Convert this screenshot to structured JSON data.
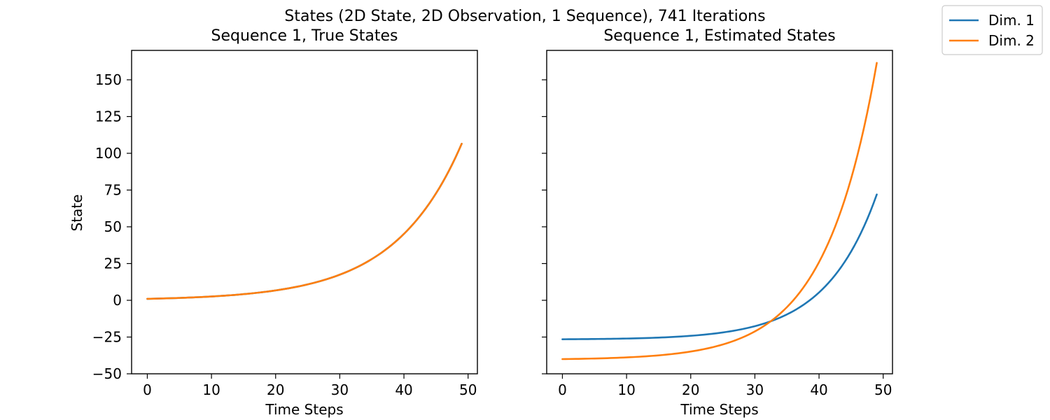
{
  "figure": {
    "suptitle": "States (2D State, 2D Observation, 1 Sequence), 741 Iterations",
    "legend": {
      "placement": "top-right (figure)",
      "entries": [
        {
          "label": "Dim. 1",
          "color": "#1f77b4"
        },
        {
          "label": "Dim. 2",
          "color": "#ff7f0e"
        }
      ]
    }
  },
  "chart_data": [
    {
      "type": "line",
      "title": "Sequence 1, True States",
      "xlabel": "Time Steps",
      "ylabel": "State",
      "xlim": [
        -2.45,
        51.45
      ],
      "ylim": [
        -50,
        170
      ],
      "xticks": [
        0,
        10,
        20,
        30,
        40,
        50
      ],
      "yticks": [
        -50,
        -25,
        0,
        25,
        50,
        75,
        100,
        125,
        150
      ],
      "grid": false,
      "series": [
        {
          "name": "Dim. 1",
          "color": "#1f77b4",
          "model": "exp",
          "x_start": 0,
          "x_end": 49,
          "y_start": 1.0,
          "y_end": 106.5,
          "points_x": [
            0,
            10,
            20,
            30,
            40,
            49
          ],
          "points_y": [
            1.0,
            2.6,
            6.6,
            16.5,
            42.0,
            106.5
          ]
        },
        {
          "name": "Dim. 2",
          "color": "#ff7f0e",
          "model": "exp",
          "x_start": 0,
          "x_end": 49,
          "y_start": 1.0,
          "y_end": 106.5,
          "points_x": [
            0,
            10,
            20,
            30,
            40,
            49
          ],
          "points_y": [
            1.0,
            2.6,
            6.6,
            16.5,
            42.0,
            106.5
          ]
        }
      ]
    },
    {
      "type": "line",
      "title": "Sequence 1, Estimated States",
      "xlabel": "Time Steps",
      "ylabel": "",
      "xlim": [
        -2.45,
        51.45
      ],
      "ylim": [
        -50,
        170
      ],
      "xticks": [
        0,
        10,
        20,
        30,
        40,
        50
      ],
      "yticks": [
        -50,
        -25,
        0,
        25,
        50,
        75,
        100,
        125,
        150
      ],
      "shared_y": true,
      "grid": false,
      "series": [
        {
          "name": "Dim. 1",
          "color": "#1f77b4",
          "model": "exp_offset",
          "x_start": 0,
          "x_end": 49,
          "y_start": -26.5,
          "y_end": 72.0,
          "offset": -27.0,
          "rate": 0.1245,
          "points_x": [
            0,
            10,
            20,
            30,
            40,
            49
          ],
          "points_y": [
            -26.5,
            -25.2,
            -21.1,
            -11.2,
            18.4,
            72.0
          ]
        },
        {
          "name": "Dim. 2",
          "color": "#ff7f0e",
          "model": "exp_offset",
          "x_start": 0,
          "x_end": 49,
          "y_start": -40.0,
          "y_end": 161.5,
          "offset": -40.5,
          "rate": 0.1235,
          "points_x": [
            0,
            10,
            20,
            30,
            40,
            49
          ],
          "points_y": [
            -40.0,
            -37.3,
            -30.0,
            -9.3,
            45.5,
            161.5
          ]
        }
      ]
    }
  ]
}
